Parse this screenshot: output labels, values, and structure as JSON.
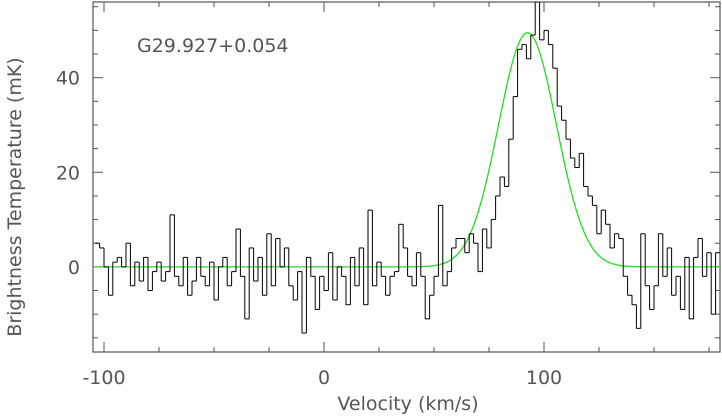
{
  "chart_data": {
    "type": "line",
    "annotation": "G29.927+0.054",
    "xlabel": "Velocity (km/s)",
    "ylabel": "Brightness Temperature (mK)",
    "xlim": [
      -105,
      180
    ],
    "ylim": [
      -18,
      56
    ],
    "x_ticks": [
      -100,
      0,
      100
    ],
    "y_ticks": [
      0,
      20,
      40
    ],
    "grid": false,
    "colors": {
      "spectrum": "#000000",
      "fit": "#22dd22",
      "axes": "#555555"
    },
    "series": [
      {
        "style": "step",
        "x": [
          -104.0,
          -102.0,
          -100.0,
          -98.0,
          -96.0,
          -94.0,
          -92.0,
          -90.0,
          -88.0,
          -86.0,
          -84.0,
          -82.0,
          -80.0,
          -78.0,
          -76.0,
          -74.0,
          -72.0,
          -70.0,
          -68.0,
          -66.0,
          -64.0,
          -62.0,
          -60.0,
          -58.0,
          -56.0,
          -54.0,
          -52.0,
          -50.0,
          -48.0,
          -46.0,
          -44.0,
          -42.0,
          -40.0,
          -38.0,
          -36.0,
          -34.0,
          -32.0,
          -30.0,
          -28.0,
          -26.0,
          -24.0,
          -22.0,
          -20.0,
          -18.0,
          -16.0,
          -14.0,
          -12.0,
          -10.0,
          -8.0,
          -6.0,
          -4.0,
          -2.0,
          0.0,
          2.0,
          4.0,
          6.0,
          8.0,
          10.0,
          12.0,
          14.0,
          16.0,
          18.0,
          20.0,
          22.0,
          24.0,
          26.0,
          28.0,
          30.0,
          32.0,
          34.0,
          36.0,
          38.0,
          40.0,
          42.0,
          44.0,
          46.0,
          48.0,
          50.0,
          52.0,
          54.0,
          56.0,
          58.0,
          60.0,
          62.0,
          64.0,
          66.0,
          68.0,
          70.0,
          72.0,
          74.0,
          76.0,
          78.0,
          80.0,
          82.0,
          84.0,
          86.0,
          88.0,
          90.0,
          92.0,
          94.0,
          96.0,
          98.0,
          100.0,
          102.0,
          104.0,
          106.0,
          108.0,
          110.0,
          112.0,
          114.0,
          116.0,
          118.0,
          120.0,
          122.0,
          124.0,
          126.0,
          128.0,
          130.0,
          132.0,
          134.0,
          136.0,
          138.0,
          140.0,
          142.0,
          144.0,
          146.0,
          148.0,
          150.0,
          152.0,
          154.0,
          156.0,
          158.0,
          160.0,
          162.0,
          164.0,
          166.0,
          168.0,
          170.0,
          172.0,
          174.0,
          176.0,
          178.0
        ],
        "y": [
          5.0,
          4.0,
          0.0,
          -6.0,
          1.0,
          2.0,
          0.0,
          5.0,
          -4.0,
          1.0,
          -3.0,
          2.0,
          -5.0,
          -1.0,
          1.0,
          -3.0,
          -1.0,
          11.0,
          -2.0,
          -4.0,
          2.0,
          -6.0,
          -3.0,
          2.0,
          -2.0,
          -4.0,
          1.0,
          -7.0,
          0.0,
          2.0,
          -4.0,
          -1.0,
          8.0,
          -2.0,
          -11.0,
          4.0,
          -3.0,
          2.0,
          -6.0,
          7.0,
          -4.0,
          6.0,
          0.0,
          4.0,
          -4.0,
          -7.0,
          -1.0,
          -14.0,
          2.0,
          -2.0,
          -9.0,
          -2.0,
          -5.0,
          3.0,
          -7.0,
          0.0,
          -2.0,
          -8.0,
          2.0,
          -4.0,
          4.0,
          -8.0,
          12.0,
          -4.0,
          1.0,
          -2.0,
          -6.0,
          -2.0,
          -1.0,
          9.0,
          4.0,
          -2.0,
          -4.0,
          3.0,
          -2.0,
          -11.0,
          -6.0,
          -2.0,
          13.0,
          -4.0,
          -1.0,
          4.0,
          6.0,
          6.0,
          3.0,
          7.0,
          5.0,
          -1.0,
          8.0,
          4.0,
          10.0,
          15.0,
          19.0,
          17.0,
          27.0,
          36.0,
          46.0,
          47.0,
          44.0,
          49.0,
          56.0,
          48.0,
          50.0,
          47.0,
          42.0,
          34.0,
          31.0,
          27.0,
          23.0,
          21.0,
          24.0,
          17.0,
          15.0,
          13.0,
          7.0,
          12.0,
          9.0,
          4.0,
          7.0,
          6.0,
          -2.0,
          -6.0,
          -8.0,
          -13.0,
          7.0,
          -4.0,
          -9.0,
          -4.0,
          7.0,
          -2.0,
          4.0,
          -6.0,
          -2.0,
          -9.0,
          2.0,
          -11.0,
          2.0,
          6.0,
          -2.0,
          3.0,
          -10.0,
          3.0
        ]
      },
      {
        "style": "gaussian",
        "amplitude": 49.5,
        "center": 92.5,
        "fwhm": 31.0
      }
    ]
  }
}
